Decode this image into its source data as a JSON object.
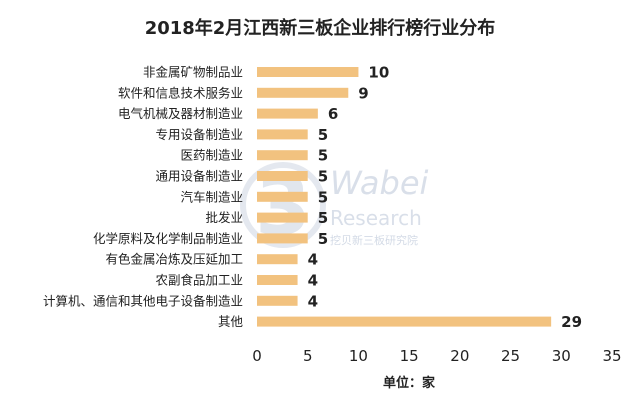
{
  "chart_data": {
    "type": "bar",
    "orientation": "horizontal",
    "title": "2018年2月江西新三板企业排行榜行业分布",
    "xlabel": "单位：家",
    "categories": [
      "非金属矿物制品业",
      "软件和信息技术服务业",
      "电气机械及器材制造业",
      "专用设备制造业",
      "医药制造业",
      "通用设备制造业",
      "汽车制造业",
      "批发业",
      "化学原料及化学制品制造业",
      "有色金属冶炼及压延加工",
      "农副食品加工业",
      "计算机、通信和其他电子设备制造业",
      "其他"
    ],
    "values": [
      10,
      9,
      6,
      5,
      5,
      5,
      5,
      5,
      5,
      4,
      4,
      4,
      29
    ],
    "xlim": [
      0,
      35
    ],
    "xticks": [
      0,
      5,
      10,
      15,
      20,
      25,
      30,
      35
    ],
    "grid": false,
    "bar_color": "#f2c27f"
  },
  "watermark": {
    "logo_mark": "3",
    "brand_top": "Wabei",
    "brand_bottom": "Research",
    "brand_cn": "挖贝新三板研究院"
  }
}
